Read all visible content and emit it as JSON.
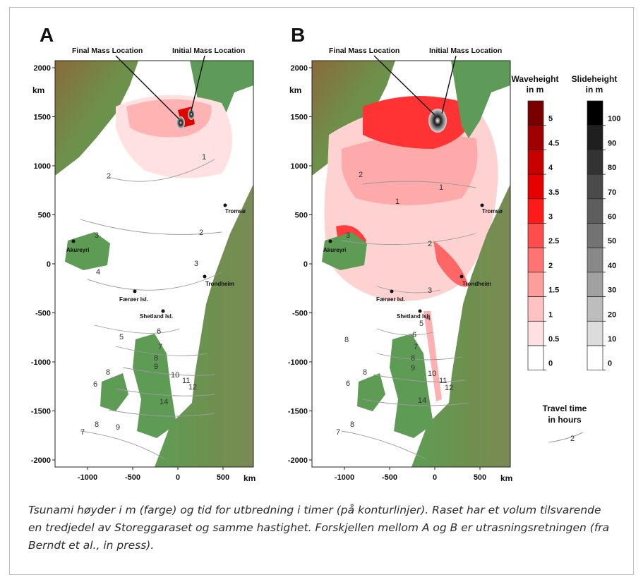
{
  "panels": [
    {
      "letter": "A"
    },
    {
      "letter": "B"
    }
  ],
  "annotations": {
    "final_mass": "Final Mass Location",
    "initial_mass": "Initial Mass Location"
  },
  "y_axis": {
    "unit": "km",
    "ticks": [
      "2000",
      "1500",
      "1000",
      "500",
      "0",
      "-500",
      "-1000",
      "-1500",
      "-2000"
    ]
  },
  "x_axis": {
    "unit": "km",
    "ticks": [
      "-1000",
      "-500",
      "0",
      "500"
    ]
  },
  "places": [
    "Tromsø",
    "Akureyri",
    "Trondheim",
    "Færøer Isl.",
    "Shetland Isl."
  ],
  "contour_labels_a": [
    "1",
    "2",
    "2",
    "3",
    "3",
    "4",
    "5",
    "6",
    "6",
    "7",
    "8",
    "8",
    "9",
    "9",
    "10",
    "11",
    "12",
    "14",
    "7",
    "8"
  ],
  "contour_labels_b": [
    "1",
    "1",
    "2",
    "2",
    "3",
    "3",
    "4",
    "5",
    "6",
    "6",
    "7",
    "8",
    "8",
    "9",
    "10",
    "11",
    "12",
    "14",
    "7",
    "8",
    "8"
  ],
  "legend": {
    "waveheight_title_1": "Waveheight",
    "waveheight_title_2": "in m",
    "waveheight_labels": [
      "5",
      "4.5",
      "4",
      "3.5",
      "3",
      "2.5",
      "2",
      "1.5",
      "1",
      "0.5",
      "0"
    ],
    "waveheight_colors": [
      "#7a0000",
      "#a10000",
      "#c80000",
      "#e60000",
      "#ff1a1a",
      "#ff4d4d",
      "#ff7373",
      "#ff9d9d",
      "#ffc2c2",
      "#ffe1e1",
      "#ffffff"
    ],
    "slideheight_title_1": "Slideheight",
    "slideheight_title_2": "in m",
    "slideheight_labels": [
      "100",
      "90",
      "80",
      "70",
      "60",
      "50",
      "40",
      "30",
      "20",
      "10",
      "0"
    ],
    "slideheight_colors": [
      "#000000",
      "#1f1f1f",
      "#333333",
      "#4a4a4a",
      "#5e5e5e",
      "#737373",
      "#898989",
      "#a1a1a1",
      "#bdbdbd",
      "#dcdcdc",
      "#ffffff"
    ],
    "travel_title_1": "Travel time",
    "travel_title_2": "in hours",
    "travel_sample": "2"
  },
  "caption": "Tsunami høyder i m (farge) og tid for utbredning i timer (på konturlinjer). Raset har et volum tilsvarende en tredjedel av Storeggaraset og samme hastighet. Forskjellen mellom A og B er utrasningsretningen (fra Berndt et al., in press)."
}
